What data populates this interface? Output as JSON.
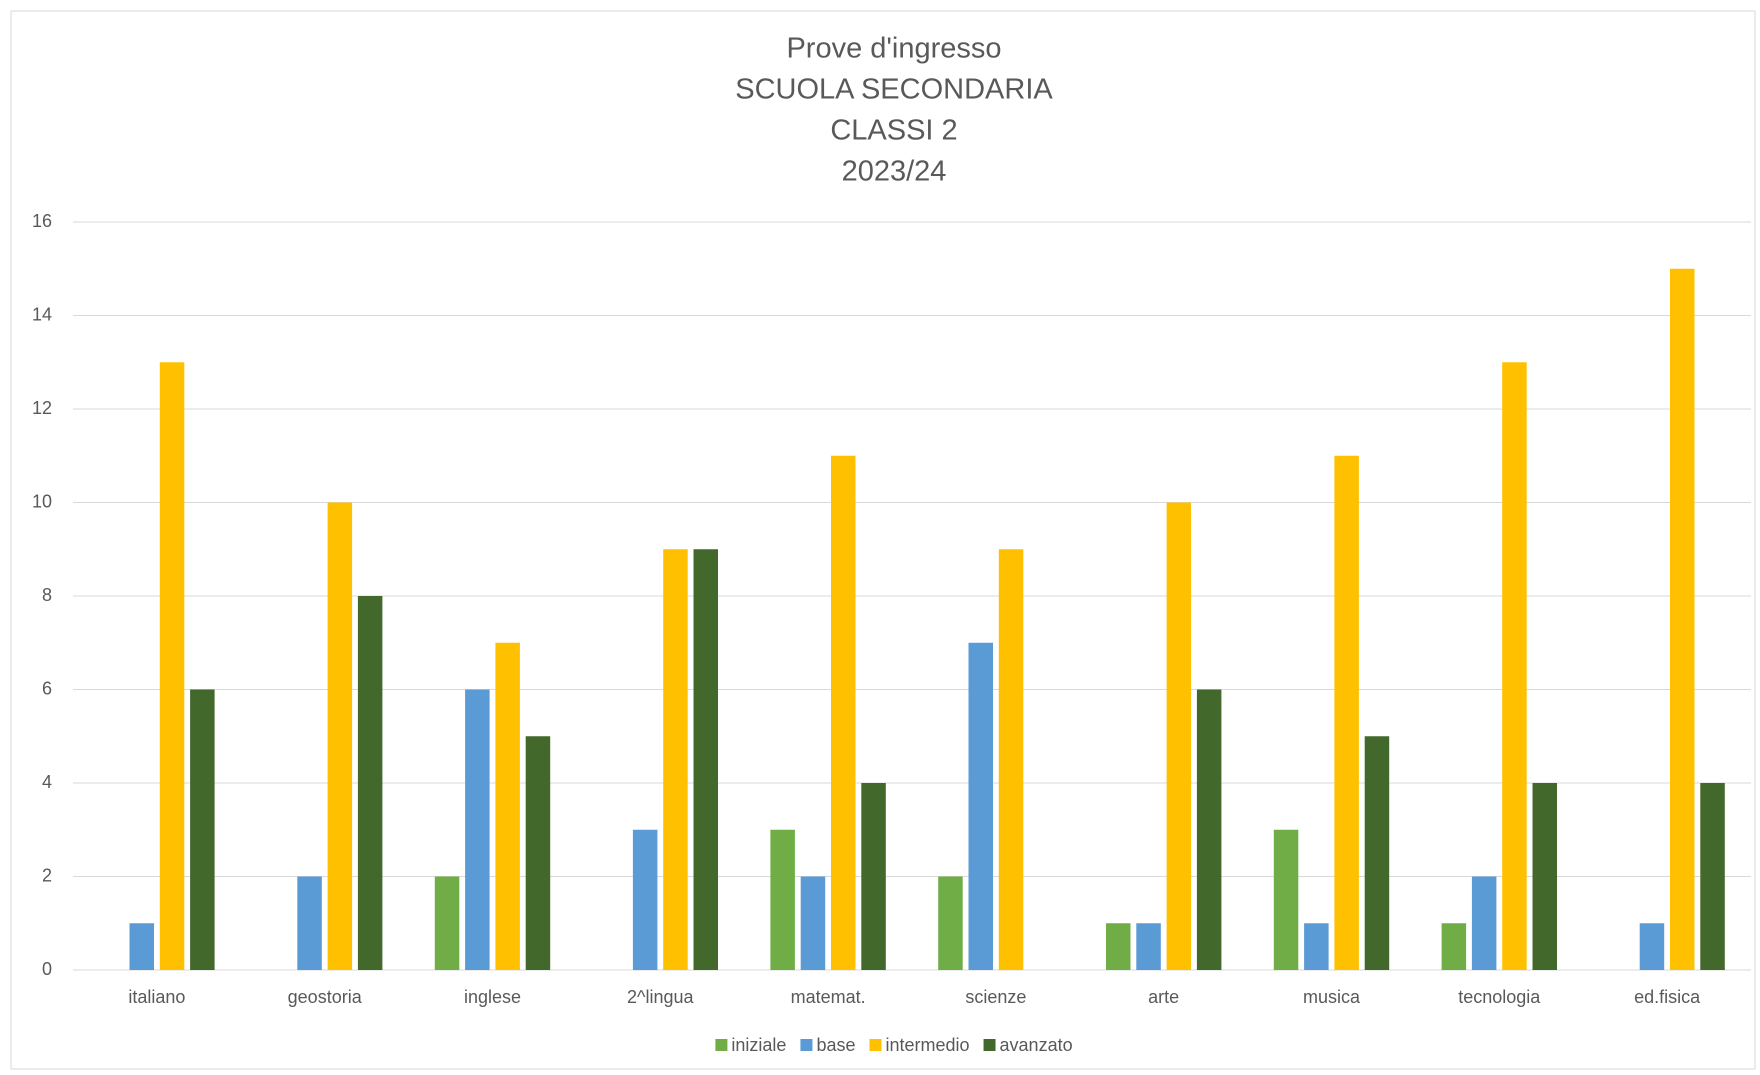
{
  "chart_data": {
    "type": "bar",
    "title": [
      "Prove d'ingresso",
      "SCUOLA SECONDARIA",
      "CLASSI 2",
      "2023/24"
    ],
    "categories": [
      "italiano",
      "geostoria",
      "inglese",
      "2^lingua",
      "matemat.",
      "scienze",
      "arte",
      "musica",
      "tecnologia",
      "ed.fisica"
    ],
    "series": [
      {
        "name": "iniziale",
        "color": "#70ad47",
        "values": [
          0,
          0,
          2,
          0,
          3,
          2,
          1,
          3,
          1,
          0
        ]
      },
      {
        "name": "base",
        "color": "#5b9bd5",
        "values": [
          1,
          2,
          6,
          3,
          2,
          7,
          1,
          1,
          2,
          1
        ]
      },
      {
        "name": "intermedio",
        "color": "#ffc000",
        "values": [
          13,
          10,
          7,
          9,
          11,
          9,
          10,
          11,
          13,
          15
        ]
      },
      {
        "name": "avanzato",
        "color": "#43682b",
        "values": [
          6,
          8,
          5,
          9,
          4,
          0,
          6,
          5,
          4,
          4
        ]
      }
    ],
    "ylim": [
      0,
      16
    ],
    "yticks": [
      0,
      2,
      4,
      6,
      8,
      10,
      12,
      14,
      16
    ],
    "grid": true,
    "legend": "bottom"
  }
}
